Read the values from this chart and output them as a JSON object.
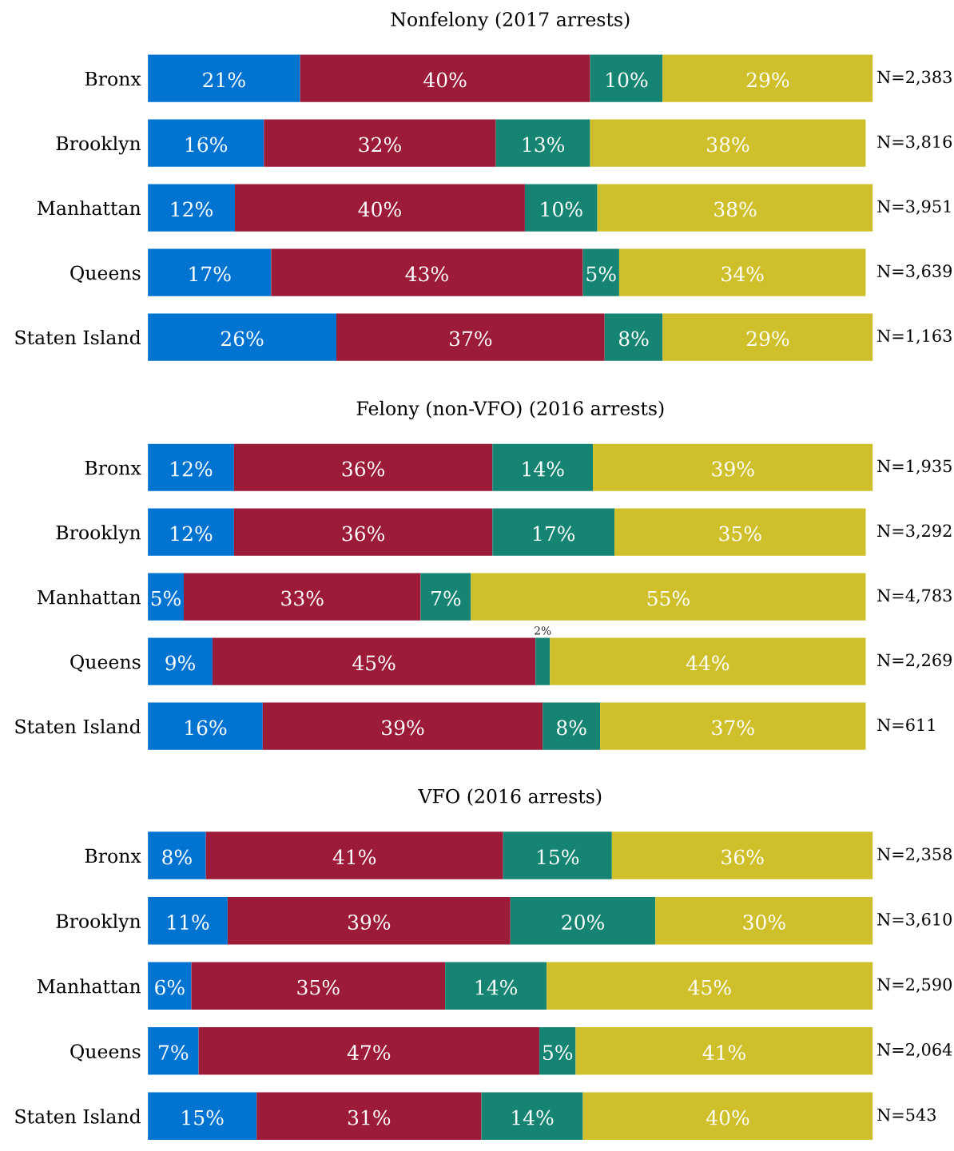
{
  "chart_data": [
    {
      "type": "bar",
      "orientation": "horizontal",
      "stacked": true,
      "title": "Nonfelony (2017 arrests)",
      "categories": [
        "Bronx",
        "Brooklyn",
        "Manhattan",
        "Queens",
        "Staten Island"
      ],
      "series": [
        {
          "color": "#0074d0",
          "values": [
            21,
            16,
            12,
            17,
            26
          ],
          "value_labels": [
            "21%",
            "16%",
            "12%",
            "17%",
            "26%"
          ]
        },
        {
          "color": "#9b1b38",
          "values": [
            40,
            32,
            40,
            43,
            37
          ],
          "value_labels": [
            "40%",
            "32%",
            "40%",
            "43%",
            "37%"
          ]
        },
        {
          "color": "#168473",
          "values": [
            10,
            13,
            10,
            5,
            8
          ],
          "value_labels": [
            "10%",
            "13%",
            "10%",
            "5%",
            "8%"
          ]
        },
        {
          "color": "#cfbf2a",
          "values": [
            29,
            38,
            38,
            34,
            29
          ],
          "value_labels": [
            "29%",
            "38%",
            "38%",
            "34%",
            "29%"
          ]
        }
      ],
      "annotations": [
        "N=2,383",
        "N=3,816",
        "N=3,951",
        "N=3,639",
        "N=1,163"
      ]
    },
    {
      "type": "bar",
      "orientation": "horizontal",
      "stacked": true,
      "title": "Felony (non-VFO) (2016 arrests)",
      "categories": [
        "Bronx",
        "Brooklyn",
        "Manhattan",
        "Queens",
        "Staten Island"
      ],
      "series": [
        {
          "color": "#0074d0",
          "values": [
            12,
            12,
            5,
            9,
            16
          ],
          "value_labels": [
            "12%",
            "12%",
            "5%",
            "9%",
            "16%"
          ]
        },
        {
          "color": "#9b1b38",
          "values": [
            36,
            36,
            33,
            45,
            39
          ],
          "value_labels": [
            "36%",
            "36%",
            "33%",
            "45%",
            "39%"
          ]
        },
        {
          "color": "#168473",
          "values": [
            14,
            17,
            7,
            2,
            8
          ],
          "value_labels": [
            "14%",
            "17%",
            "7%",
            "2%",
            "8%"
          ]
        },
        {
          "color": "#cfbf2a",
          "values": [
            39,
            35,
            55,
            44,
            37
          ],
          "value_labels": [
            "39%",
            "35%",
            "55%",
            "44%",
            "37%"
          ]
        }
      ],
      "annotations": [
        "N=1,935",
        "N=3,292",
        "N=4,783",
        "N=2,269",
        "N=611"
      ]
    },
    {
      "type": "bar",
      "orientation": "horizontal",
      "stacked": true,
      "title": "VFO (2016 arrests)",
      "categories": [
        "Bronx",
        "Brooklyn",
        "Manhattan",
        "Queens",
        "Staten Island"
      ],
      "series": [
        {
          "color": "#0074d0",
          "values": [
            8,
            11,
            6,
            7,
            15
          ],
          "value_labels": [
            "8%",
            "11%",
            "6%",
            "7%",
            "15%"
          ]
        },
        {
          "color": "#9b1b38",
          "values": [
            41,
            39,
            35,
            47,
            31
          ],
          "value_labels": [
            "41%",
            "39%",
            "35%",
            "47%",
            "31%"
          ]
        },
        {
          "color": "#168473",
          "values": [
            15,
            20,
            14,
            5,
            14
          ],
          "value_labels": [
            "15%",
            "20%",
            "14%",
            "5%",
            "14%"
          ]
        },
        {
          "color": "#cfbf2a",
          "values": [
            36,
            30,
            45,
            41,
            40
          ],
          "value_labels": [
            "36%",
            "30%",
            "45%",
            "41%",
            "40%"
          ]
        }
      ],
      "annotations": [
        "N=2,358",
        "N=3,610",
        "N=2,590",
        "N=2,064",
        "N=543"
      ]
    }
  ]
}
